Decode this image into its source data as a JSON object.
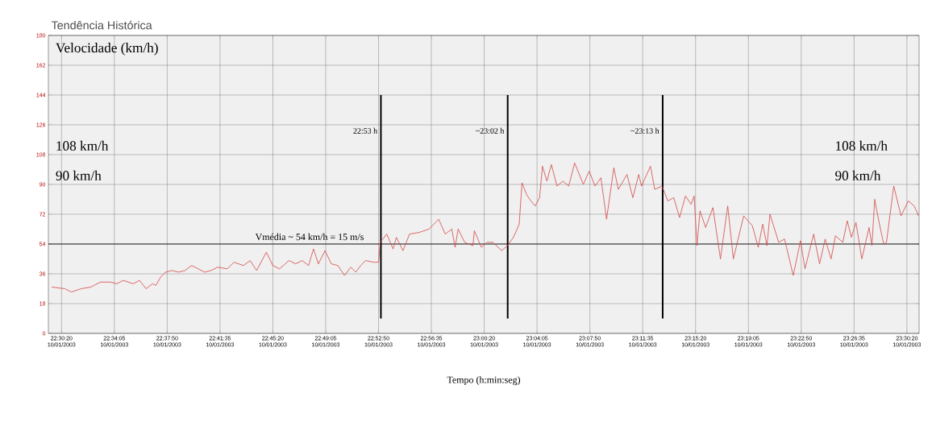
{
  "chart_data": {
    "type": "line",
    "title": "Tendência Histórica",
    "xlabel": "Tempo (h:min:seg)",
    "ylabel": "Velocidade (km/h)",
    "color": "#d64545",
    "grid": true,
    "x": [
      "2003-01-10T22:29:38",
      "2003-01-10T22:30:34",
      "2003-01-10T22:31:02",
      "2003-01-10T22:31:43",
      "2003-01-10T22:32:25",
      "2003-01-10T22:33:06",
      "2003-01-10T22:33:48",
      "2003-01-10T22:34:15",
      "2003-01-10T22:34:43",
      "2003-01-10T22:35:25",
      "2003-01-10T22:35:52",
      "2003-01-10T22:36:20",
      "2003-01-10T22:36:48",
      "2003-01-10T22:37:02",
      "2003-01-10T22:37:22",
      "2003-01-10T22:37:43",
      "2003-01-10T22:38:11",
      "2003-01-10T22:38:38",
      "2003-01-10T22:39:06",
      "2003-01-10T22:39:34",
      "2003-01-10T22:40:02",
      "2003-01-10T22:40:29",
      "2003-01-10T22:40:57",
      "2003-01-10T22:41:25",
      "2003-01-10T22:42:06",
      "2003-01-10T22:42:34",
      "2003-01-10T22:43:15",
      "2003-01-10T22:43:43",
      "2003-01-10T22:44:11",
      "2003-01-10T22:44:52",
      "2003-01-10T22:45:20",
      "2003-01-10T22:45:48",
      "2003-01-10T22:46:29",
      "2003-01-10T22:46:57",
      "2003-01-10T22:47:25",
      "2003-01-10T22:47:52",
      "2003-01-10T22:48:13",
      "2003-01-10T22:48:34",
      "2003-01-10T22:49:02",
      "2003-01-10T22:49:29",
      "2003-01-10T22:49:57",
      "2003-01-10T22:50:25",
      "2003-01-10T22:50:52",
      "2003-01-10T22:51:13",
      "2003-01-10T22:51:34",
      "2003-01-10T22:51:55",
      "2003-01-10T22:52:29",
      "2003-01-10T22:52:50",
      "2003-01-10T22:52:57",
      "2003-01-10T22:53:25",
      "2003-01-10T22:53:52",
      "2003-01-10T22:54:06",
      "2003-01-10T22:54:34",
      "2003-01-10T22:54:48",
      "2003-01-10T22:55:02",
      "2003-01-10T22:55:43",
      "2003-01-10T22:56:25",
      "2003-01-10T22:57:06",
      "2003-01-10T22:57:34",
      "2003-01-10T22:58:02",
      "2003-01-10T22:58:16",
      "2003-01-10T22:58:29",
      "2003-01-10T22:58:57",
      "2003-01-10T22:59:32",
      "2003-01-10T22:59:38",
      "2003-01-10T23:00:08",
      "2003-01-10T23:00:32",
      "2003-01-10T23:00:57",
      "2003-01-10T23:01:34",
      "2003-01-10T23:01:59",
      "2003-01-10T23:02:24",
      "2003-01-10T23:02:43",
      "2003-01-10T23:02:49",
      "2003-01-10T23:03:01",
      "2003-01-10T23:03:20",
      "2003-01-10T23:03:39",
      "2003-01-10T23:03:57",
      "2003-01-10T23:04:16",
      "2003-01-10T23:04:28",
      "2003-01-10T23:04:47",
      "2003-01-10T23:05:06",
      "2003-01-10T23:05:30",
      "2003-01-10T23:05:55",
      "2003-01-10T23:06:20",
      "2003-01-10T23:06:45",
      "2003-01-10T23:07:22",
      "2003-01-10T23:07:47",
      "2003-01-10T23:08:12",
      "2003-01-10T23:08:37",
      "2003-01-10T23:09:01",
      "2003-01-10T23:09:32",
      "2003-01-10T23:09:51",
      "2003-01-10T23:10:28",
      "2003-01-10T23:10:53",
      "2003-01-10T23:11:18",
      "2003-01-10T23:11:30",
      "2003-01-10T23:12:08",
      "2003-01-10T23:12:26",
      "2003-01-10T23:12:57",
      "2003-01-10T23:13:22",
      "2003-01-10T23:13:47",
      "2003-01-10T23:14:12",
      "2003-01-10T23:14:37",
      "2003-01-10T23:15:01",
      "2003-01-10T23:15:14",
      "2003-01-10T23:15:26",
      "2003-01-10T23:15:39",
      "2003-01-10T23:16:03",
      "2003-01-10T23:16:34",
      "2003-01-10T23:17:06",
      "2003-01-10T23:17:37",
      "2003-01-10T23:18:01",
      "2003-01-10T23:18:45",
      "2003-01-10T23:19:22",
      "2003-01-10T23:19:47",
      "2003-01-10T23:20:06",
      "2003-01-10T23:20:24",
      "2003-01-10T23:20:37",
      "2003-01-10T23:21:14",
      "2003-01-10T23:21:39",
      "2003-01-10T23:22:16",
      "2003-01-10T23:22:47",
      "2003-01-10T23:23:06",
      "2003-01-10T23:23:43",
      "2003-01-10T23:24:08",
      "2003-01-10T23:24:32",
      "2003-01-10T23:24:57",
      "2003-01-10T23:25:16",
      "2003-01-10T23:25:47",
      "2003-01-10T23:26:06",
      "2003-01-10T23:26:24",
      "2003-01-10T23:26:43",
      "2003-01-10T23:27:08",
      "2003-01-10T23:27:39",
      "2003-01-10T23:27:51",
      "2003-01-10T23:28:03",
      "2003-01-10T23:28:16",
      "2003-01-10T23:28:41",
      "2003-01-10T23:28:53",
      "2003-01-10T23:29:24",
      "2003-01-10T23:29:55",
      "2003-01-10T23:30:26",
      "2003-01-10T23:30:51",
      "2003-01-10T23:31:10"
    ],
    "values": [
      28,
      27,
      25,
      27,
      28,
      31,
      31,
      30,
      32,
      30,
      32,
      27,
      30,
      29,
      34,
      37,
      38,
      37,
      38,
      41,
      39,
      37,
      38,
      40,
      39,
      43,
      41,
      44,
      38,
      49,
      41,
      39,
      44,
      42,
      44,
      41,
      51,
      42,
      50,
      42,
      41,
      35,
      40,
      37,
      41,
      44,
      43,
      43,
      55,
      60,
      51,
      58,
      50,
      55,
      60,
      61,
      63,
      69,
      60,
      63,
      52,
      63,
      55,
      53,
      62,
      52,
      55,
      55,
      50,
      53,
      58,
      64,
      66,
      91,
      84,
      80,
      77,
      82,
      101,
      92,
      102,
      89,
      92,
      89,
      103,
      90,
      98,
      89,
      94,
      69,
      100,
      87,
      96,
      82,
      96,
      89,
      101,
      87,
      89,
      80,
      82,
      70,
      83,
      78,
      83,
      53,
      74,
      64,
      76,
      45,
      77,
      45,
      71,
      65,
      52,
      66,
      53,
      72,
      55,
      57,
      35,
      56,
      39,
      60,
      42,
      57,
      45,
      59,
      55,
      68,
      58,
      67,
      45,
      64,
      53,
      81,
      71,
      54,
      55,
      89,
      71,
      80,
      77,
      71
    ],
    "xlim": [
      "2003-01-10T22:29:24",
      "2003-01-10T23:31:12"
    ],
    "ylim": [
      0,
      180
    ],
    "xticks": [
      {
        "value": "2003-01-10T22:30:20",
        "label": "22:30:20 10/01/2003"
      },
      {
        "value": "2003-01-10T22:34:05",
        "label": "22:34:05 10/01/2003"
      },
      {
        "value": "2003-01-10T22:37:50",
        "label": "22:37:50 10/01/2003"
      },
      {
        "value": "2003-01-10T22:41:35",
        "label": "22:41:35 10/01/2003"
      },
      {
        "value": "2003-01-10T22:45:20",
        "label": "22:45:20 10/01/2003"
      },
      {
        "value": "2003-01-10T22:49:05",
        "label": "22:49:05 10/01/2003"
      },
      {
        "value": "2003-01-10T22:52:50",
        "label": "22:52:50 10/01/2003"
      },
      {
        "value": "2003-01-10T22:56:35",
        "label": "22:56:35 10/01/2003"
      },
      {
        "value": "2003-01-10T23:00:20",
        "label": "23:00:20 10/01/2003"
      },
      {
        "value": "2003-01-10T23:04:05",
        "label": "23:04:05 10/01/2003"
      },
      {
        "value": "2003-01-10T23:07:50",
        "label": "23:07:50 10/01/2003"
      },
      {
        "value": "2003-01-10T23:11:35",
        "label": "23:11:35 10/01/2003"
      },
      {
        "value": "2003-01-10T23:15:20",
        "label": "23:15:20 10/01/2003"
      },
      {
        "value": "2003-01-10T23:19:05",
        "label": "23:19:05 10/01/2003"
      },
      {
        "value": "2003-01-10T23:22:50",
        "label": "23:22:50 10/01/2003"
      },
      {
        "value": "2003-01-10T23:26:35",
        "label": "23:26:35 10/01/2003"
      },
      {
        "value": "2003-01-10T23:30:20",
        "label": "23:30:20 10/01/2003"
      }
    ],
    "yticks": [
      0,
      18,
      36,
      54,
      72,
      90,
      108,
      126,
      144,
      162,
      180
    ],
    "ref_lines": [
      {
        "axis": "x",
        "value": "2003-01-10T22:53",
        "label": "22:53 h"
      },
      {
        "axis": "x",
        "value": "2003-01-10T23:02",
        "label": "~23:02 h"
      },
      {
        "axis": "x",
        "value": "2003-01-10T23:13",
        "label": "~23:13 h"
      },
      {
        "axis": "y",
        "value": 54,
        "label": "Vmédia ~ 54 km/h = 15 m/s"
      }
    ],
    "annotations": [
      "108 km/h",
      "90 km/h",
      "108 km/h",
      "90 km/h"
    ]
  }
}
